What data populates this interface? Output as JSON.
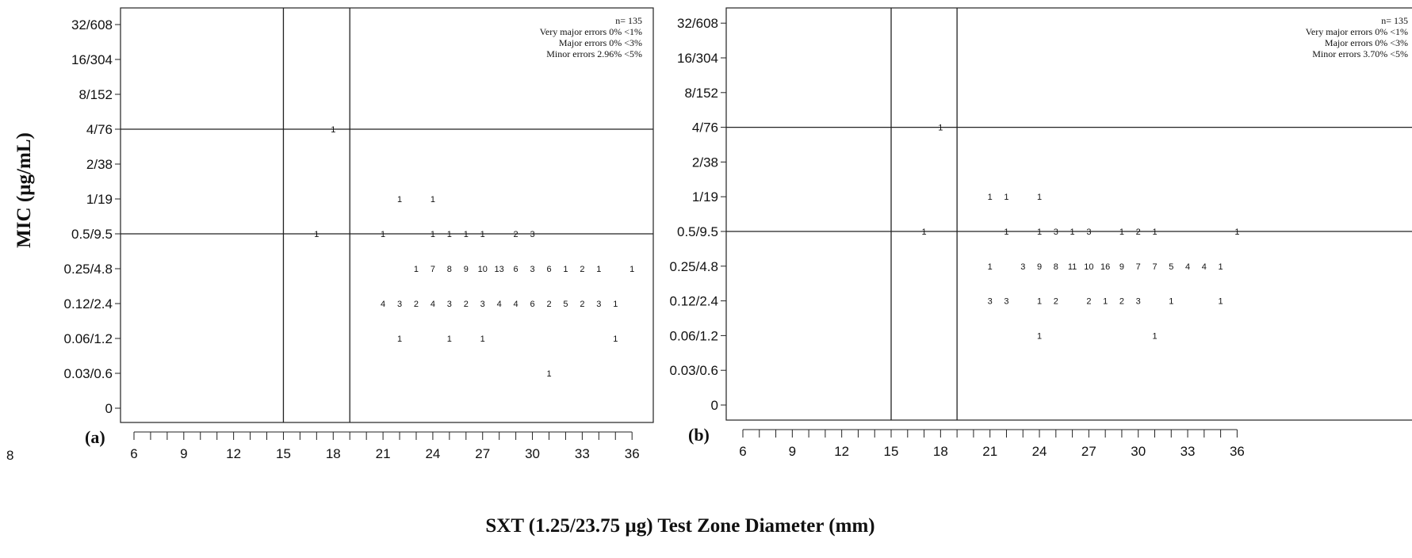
{
  "page_marker": "8",
  "figure": {
    "ylabel": "MIC (µg/mL)",
    "xlabel": "SXT (1.25/23.75 µg)  Test Zone Diameter (mm)"
  },
  "chart_data": [
    {
      "type": "scatter",
      "panel_label": "(a)",
      "y_tick_labels": [
        "0",
        "0.03/0.6",
        "0.06/1.2",
        "0.12/2.4",
        "0.25/4.8",
        "0.5/9.5",
        "1/19",
        "2/38",
        "4/76",
        "8/152",
        "16/304",
        "32/608"
      ],
      "x_ticks": [
        6,
        9,
        12,
        15,
        18,
        21,
        24,
        27,
        30,
        33,
        36
      ],
      "xlim": [
        5,
        37
      ],
      "ylim_index": [
        0,
        11
      ],
      "breakpoints": {
        "zone_diameter_mm": [
          15,
          19
        ],
        "mic_index": [
          5,
          8
        ]
      },
      "stats": [
        "n= 135",
        "Very major errors 0% <1%",
        "Major errors 0% <3%",
        "Minor errors 2.96% <5%"
      ],
      "points": [
        {
          "x": 18,
          "y": 8,
          "count": 1
        },
        {
          "x": 22,
          "y": 6,
          "count": 1
        },
        {
          "x": 24,
          "y": 6,
          "count": 1
        },
        {
          "x": 17,
          "y": 5,
          "count": 1
        },
        {
          "x": 21,
          "y": 5,
          "count": 1
        },
        {
          "x": 24,
          "y": 5,
          "count": 1
        },
        {
          "x": 25,
          "y": 5,
          "count": 1
        },
        {
          "x": 26,
          "y": 5,
          "count": 1
        },
        {
          "x": 27,
          "y": 5,
          "count": 1
        },
        {
          "x": 29,
          "y": 5,
          "count": 2
        },
        {
          "x": 30,
          "y": 5,
          "count": 3
        },
        {
          "x": 23,
          "y": 4,
          "count": 1
        },
        {
          "x": 24,
          "y": 4,
          "count": 7
        },
        {
          "x": 25,
          "y": 4,
          "count": 8
        },
        {
          "x": 26,
          "y": 4,
          "count": 9
        },
        {
          "x": 27,
          "y": 4,
          "count": 10
        },
        {
          "x": 28,
          "y": 4,
          "count": 13
        },
        {
          "x": 29,
          "y": 4,
          "count": 6
        },
        {
          "x": 30,
          "y": 4,
          "count": 3
        },
        {
          "x": 31,
          "y": 4,
          "count": 6
        },
        {
          "x": 32,
          "y": 4,
          "count": 1
        },
        {
          "x": 33,
          "y": 4,
          "count": 2
        },
        {
          "x": 34,
          "y": 4,
          "count": 1
        },
        {
          "x": 36,
          "y": 4,
          "count": 1
        },
        {
          "x": 21,
          "y": 3,
          "count": 4
        },
        {
          "x": 22,
          "y": 3,
          "count": 3
        },
        {
          "x": 23,
          "y": 3,
          "count": 2
        },
        {
          "x": 24,
          "y": 3,
          "count": 4
        },
        {
          "x": 25,
          "y": 3,
          "count": 3
        },
        {
          "x": 26,
          "y": 3,
          "count": 2
        },
        {
          "x": 27,
          "y": 3,
          "count": 3
        },
        {
          "x": 28,
          "y": 3,
          "count": 4
        },
        {
          "x": 29,
          "y": 3,
          "count": 4
        },
        {
          "x": 30,
          "y": 3,
          "count": 6
        },
        {
          "x": 31,
          "y": 3,
          "count": 2
        },
        {
          "x": 32,
          "y": 3,
          "count": 5
        },
        {
          "x": 33,
          "y": 3,
          "count": 2
        },
        {
          "x": 34,
          "y": 3,
          "count": 3
        },
        {
          "x": 35,
          "y": 3,
          "count": 1
        },
        {
          "x": 22,
          "y": 2,
          "count": 1
        },
        {
          "x": 25,
          "y": 2,
          "count": 1
        },
        {
          "x": 27,
          "y": 2,
          "count": 1
        },
        {
          "x": 35,
          "y": 2,
          "count": 1
        },
        {
          "x": 31,
          "y": 1,
          "count": 1
        }
      ]
    },
    {
      "type": "scatter",
      "panel_label": "(b)",
      "y_tick_labels": [
        "0",
        "0.03/0.6",
        "0.06/1.2",
        "0.12/2.4",
        "0.25/4.8",
        "0.5/9.5",
        "1/19",
        "2/38",
        "4/76",
        "8/152",
        "16/304",
        "32/608"
      ],
      "x_ticks": [
        6,
        9,
        12,
        15,
        18,
        21,
        24,
        27,
        30,
        33,
        36
      ],
      "xlim": [
        5,
        37
      ],
      "ylim_index": [
        0,
        11
      ],
      "breakpoints": {
        "zone_diameter_mm": [
          15,
          19
        ],
        "mic_index": [
          5,
          8
        ]
      },
      "stats": [
        "n= 135",
        "Very major errors 0% <1%",
        "Major errors 0% <3%",
        "Minor errors 3.70% <5%"
      ],
      "points": [
        {
          "x": 18,
          "y": 8,
          "count": 1
        },
        {
          "x": 21,
          "y": 6,
          "count": 1
        },
        {
          "x": 22,
          "y": 6,
          "count": 1
        },
        {
          "x": 24,
          "y": 6,
          "count": 1
        },
        {
          "x": 17,
          "y": 5,
          "count": 1
        },
        {
          "x": 22,
          "y": 5,
          "count": 1
        },
        {
          "x": 24,
          "y": 5,
          "count": 1
        },
        {
          "x": 25,
          "y": 5,
          "count": 3
        },
        {
          "x": 26,
          "y": 5,
          "count": 1
        },
        {
          "x": 27,
          "y": 5,
          "count": 3
        },
        {
          "x": 29,
          "y": 5,
          "count": 1
        },
        {
          "x": 30,
          "y": 5,
          "count": 2
        },
        {
          "x": 31,
          "y": 5,
          "count": 1
        },
        {
          "x": 36,
          "y": 5,
          "count": 1
        },
        {
          "x": 21,
          "y": 4,
          "count": 1
        },
        {
          "x": 23,
          "y": 4,
          "count": 3
        },
        {
          "x": 24,
          "y": 4,
          "count": 9
        },
        {
          "x": 25,
          "y": 4,
          "count": 8
        },
        {
          "x": 26,
          "y": 4,
          "count": 11
        },
        {
          "x": 27,
          "y": 4,
          "count": 10
        },
        {
          "x": 28,
          "y": 4,
          "count": 16
        },
        {
          "x": 29,
          "y": 4,
          "count": 9
        },
        {
          "x": 30,
          "y": 4,
          "count": 7
        },
        {
          "x": 31,
          "y": 4,
          "count": 7
        },
        {
          "x": 32,
          "y": 4,
          "count": 5
        },
        {
          "x": 33,
          "y": 4,
          "count": 4
        },
        {
          "x": 34,
          "y": 4,
          "count": 4
        },
        {
          "x": 35,
          "y": 4,
          "count": 1
        },
        {
          "x": 21,
          "y": 3,
          "count": 3
        },
        {
          "x": 22,
          "y": 3,
          "count": 3
        },
        {
          "x": 24,
          "y": 3,
          "count": 1
        },
        {
          "x": 25,
          "y": 3,
          "count": 2
        },
        {
          "x": 27,
          "y": 3,
          "count": 2
        },
        {
          "x": 28,
          "y": 3,
          "count": 1
        },
        {
          "x": 29,
          "y": 3,
          "count": 2
        },
        {
          "x": 30,
          "y": 3,
          "count": 3
        },
        {
          "x": 32,
          "y": 3,
          "count": 1
        },
        {
          "x": 35,
          "y": 3,
          "count": 1
        },
        {
          "x": 24,
          "y": 2,
          "count": 1
        },
        {
          "x": 31,
          "y": 2,
          "count": 1
        }
      ]
    }
  ]
}
